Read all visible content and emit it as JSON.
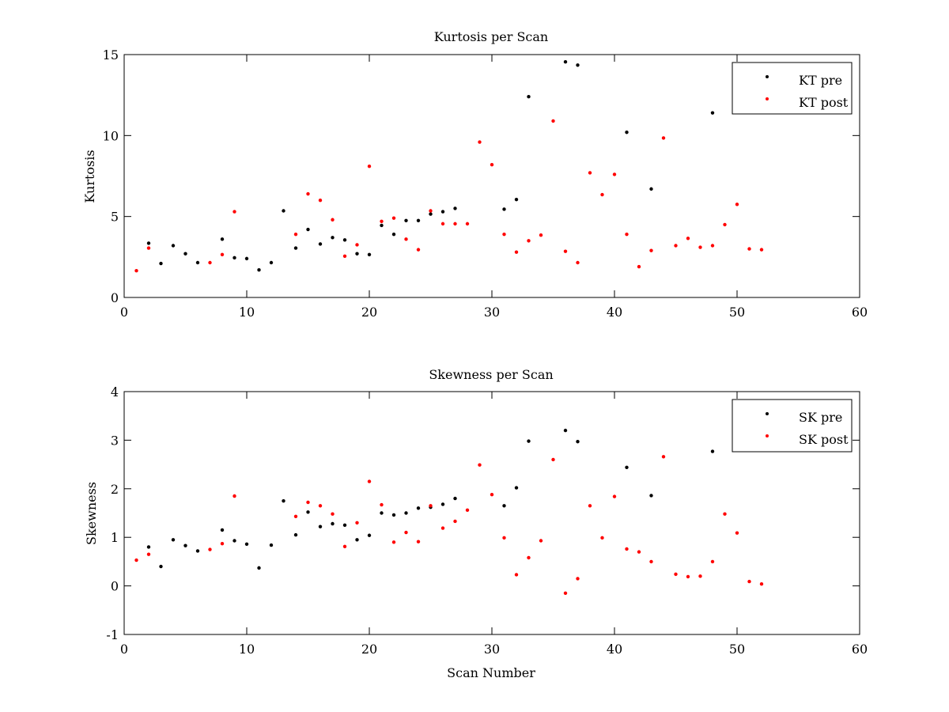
{
  "chart_data": [
    {
      "type": "scatter",
      "title": "Kurtosis per Scan",
      "xlabel": "",
      "ylabel": "Kurtosis",
      "xlim": [
        0,
        60
      ],
      "ylim": [
        0,
        15
      ],
      "xticks": [
        0,
        10,
        20,
        30,
        40,
        50,
        60
      ],
      "yticks": [
        0,
        5,
        10,
        15
      ],
      "legend_position": "top-right",
      "grid": false,
      "series": [
        {
          "name": "KT pre",
          "color": "#000000",
          "x": [
            2,
            3,
            4,
            5,
            6,
            8,
            9,
            10,
            11,
            12,
            13,
            14,
            15,
            16,
            17,
            18,
            19,
            20,
            21,
            22,
            23,
            24,
            25,
            26,
            27,
            31,
            32,
            33,
            36,
            37,
            41,
            43,
            48
          ],
          "y": [
            3.35,
            2.1,
            3.2,
            2.7,
            2.15,
            3.6,
            2.45,
            2.4,
            1.7,
            2.15,
            5.35,
            3.05,
            4.2,
            3.3,
            3.7,
            3.55,
            2.7,
            2.65,
            4.45,
            3.9,
            4.75,
            4.75,
            5.15,
            5.3,
            5.5,
            5.45,
            6.05,
            12.4,
            14.55,
            14.35,
            10.2,
            6.7,
            11.4
          ]
        },
        {
          "name": "KT post",
          "color": "#ff0000",
          "x": [
            1,
            2,
            7,
            8,
            9,
            14,
            15,
            16,
            17,
            18,
            19,
            20,
            21,
            22,
            23,
            24,
            25,
            26,
            27,
            28,
            29,
            30,
            31,
            32,
            33,
            34,
            35,
            36,
            37,
            38,
            39,
            40,
            41,
            42,
            43,
            44,
            45,
            46,
            47,
            48,
            49,
            50,
            51,
            52
          ],
          "y": [
            1.65,
            3.05,
            2.15,
            2.65,
            5.3,
            3.9,
            6.4,
            6.0,
            4.8,
            2.55,
            3.25,
            8.1,
            4.7,
            4.9,
            3.6,
            2.95,
            5.35,
            4.55,
            4.55,
            4.55,
            9.6,
            8.2,
            3.9,
            2.8,
            3.5,
            3.85,
            10.9,
            2.85,
            2.15,
            7.7,
            6.35,
            7.6,
            3.9,
            1.9,
            2.9,
            9.85,
            3.2,
            3.65,
            3.1,
            3.2,
            4.5,
            5.75,
            3.0,
            2.95
          ]
        }
      ]
    },
    {
      "type": "scatter",
      "title": "Skewness per Scan",
      "xlabel": "Scan Number",
      "ylabel": "Skewness",
      "xlim": [
        0,
        60
      ],
      "ylim": [
        -1,
        4
      ],
      "xticks": [
        0,
        10,
        20,
        30,
        40,
        50,
        60
      ],
      "yticks": [
        -1,
        0,
        1,
        2,
        3,
        4
      ],
      "legend_position": "top-right",
      "grid": false,
      "series": [
        {
          "name": "SK pre",
          "color": "#000000",
          "x": [
            2,
            3,
            4,
            5,
            6,
            8,
            9,
            10,
            11,
            12,
            13,
            14,
            15,
            16,
            17,
            18,
            19,
            20,
            21,
            22,
            23,
            24,
            25,
            26,
            27,
            31,
            32,
            33,
            36,
            37,
            41,
            43,
            48
          ],
          "y": [
            0.8,
            0.4,
            0.95,
            0.83,
            0.72,
            1.15,
            0.93,
            0.86,
            0.37,
            0.84,
            1.75,
            1.05,
            1.52,
            1.22,
            1.28,
            1.25,
            0.95,
            1.04,
            1.5,
            1.46,
            1.5,
            1.6,
            1.62,
            1.68,
            1.8,
            1.65,
            2.02,
            2.98,
            3.2,
            2.97,
            2.44,
            1.86,
            2.77
          ]
        },
        {
          "name": "SK post",
          "color": "#ff0000",
          "x": [
            1,
            2,
            7,
            8,
            9,
            14,
            15,
            16,
            17,
            18,
            19,
            20,
            21,
            22,
            23,
            24,
            25,
            26,
            27,
            28,
            29,
            30,
            31,
            32,
            33,
            34,
            35,
            36,
            37,
            38,
            39,
            40,
            41,
            42,
            43,
            44,
            45,
            46,
            47,
            48,
            49,
            50,
            51,
            52
          ],
          "y": [
            0.53,
            0.65,
            0.75,
            0.87,
            1.85,
            1.43,
            1.72,
            1.65,
            1.48,
            0.81,
            1.3,
            2.15,
            1.67,
            0.9,
            1.1,
            0.91,
            1.65,
            1.19,
            1.33,
            1.56,
            2.49,
            1.88,
            0.99,
            0.23,
            0.58,
            0.93,
            2.6,
            -0.15,
            0.15,
            1.65,
            0.99,
            1.84,
            0.76,
            0.7,
            0.5,
            2.66,
            0.24,
            0.19,
            0.2,
            0.5,
            1.48,
            1.09,
            0.09,
            0.04
          ]
        }
      ]
    }
  ]
}
